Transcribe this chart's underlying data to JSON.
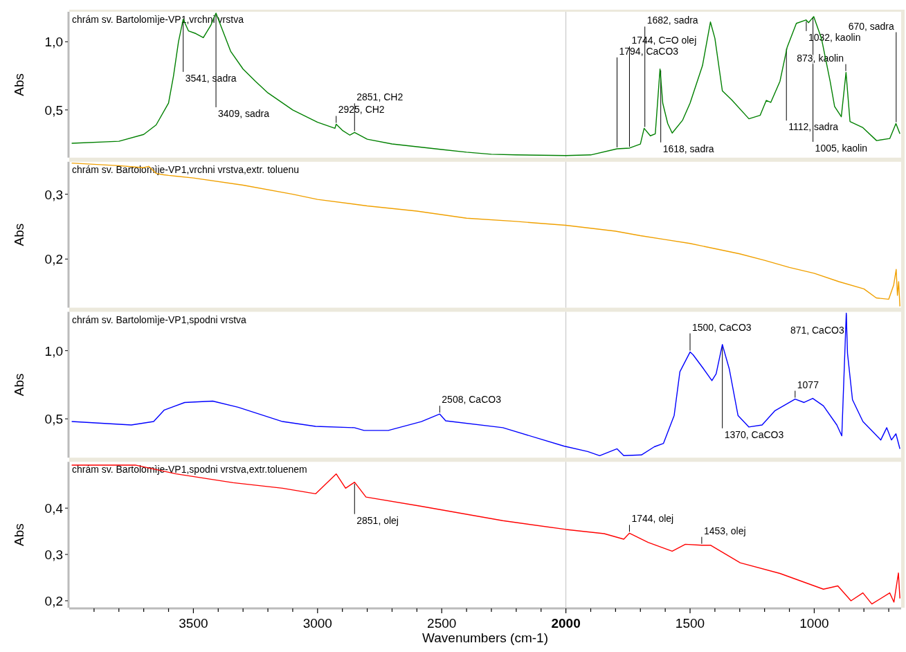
{
  "chart_data": [
    {
      "type": "line",
      "title": "chrám sv. Bartolomìje-VP1,vrchni vrstva",
      "ylabel": "Abs",
      "xlim": [
        4000,
        650
      ],
      "ylim": [
        0.15,
        1.22
      ],
      "yticks": [
        {
          "value": 0.5,
          "label": "0,5"
        },
        {
          "value": 1.0,
          "label": "1,0"
        }
      ],
      "tick_labels": "y",
      "color": "#008000",
      "x": [
        3990,
        3800,
        3700,
        3650,
        3600,
        3580,
        3560,
        3541,
        3520,
        3490,
        3460,
        3430,
        3409,
        3390,
        3350,
        3300,
        3250,
        3200,
        3100,
        3000,
        2930,
        2925,
        2900,
        2870,
        2851,
        2800,
        2700,
        2600,
        2500,
        2400,
        2300,
        2200,
        2000,
        1900,
        1794,
        1744,
        1700,
        1685,
        1660,
        1640,
        1621,
        1610,
        1590,
        1572,
        1530,
        1500,
        1450,
        1418,
        1400,
        1370,
        1333,
        1263,
        1218,
        1193,
        1175,
        1138,
        1109,
        1072,
        1033,
        1023,
        1002,
        971,
        936,
        918,
        891,
        872,
        856,
        804,
        749,
        696,
        671,
        655
      ],
      "values": [
        0.255,
        0.27,
        0.32,
        0.39,
        0.55,
        0.75,
        1.0,
        1.165,
        1.08,
        1.06,
        1.03,
        1.12,
        1.21,
        1.12,
        0.93,
        0.8,
        0.71,
        0.625,
        0.5,
        0.41,
        0.365,
        0.395,
        0.35,
        0.315,
        0.335,
        0.285,
        0.25,
        0.23,
        0.21,
        0.19,
        0.175,
        0.17,
        0.165,
        0.17,
        0.215,
        0.22,
        0.25,
        0.365,
        0.31,
        0.325,
        0.8,
        0.55,
        0.4,
        0.33,
        0.425,
        0.55,
        0.825,
        1.145,
        1.025,
        0.64,
        0.575,
        0.435,
        0.46,
        0.57,
        0.555,
        0.71,
        0.96,
        1.135,
        1.16,
        1.14,
        1.185,
        1.025,
        0.71,
        0.525,
        0.45,
        0.775,
        0.415,
        0.37,
        0.275,
        0.29,
        0.4,
        0.325
      ],
      "ref_lines": [
        {
          "axis": "x",
          "value": 2000,
          "color": "#c0c0c0"
        }
      ],
      "annotations": [
        {
          "text": "3541, sadra",
          "x": 3541,
          "y": 1.165
        },
        {
          "text": "3409, sadra",
          "x": 3409,
          "y": 1.21
        },
        {
          "text": "2925, CH2",
          "x": 2925,
          "y": 0.395
        },
        {
          "text": "2851, CH2",
          "x": 2851,
          "y": 0.335
        },
        {
          "text": "1794, CaCO3",
          "x": 1794,
          "y": 0.215
        },
        {
          "text": "1744, C=O olej",
          "x": 1744,
          "y": 0.22
        },
        {
          "text": "1682, sadra",
          "x": 1682,
          "y": 0.365
        },
        {
          "text": "1618, sadra",
          "x": 1618,
          "y": 0.8
        },
        {
          "text": "1112, sadra",
          "x": 1112,
          "y": 0.96
        },
        {
          "text": "1032, kaolin",
          "x": 1032,
          "y": 1.16
        },
        {
          "text": "1005, kaolin",
          "x": 1005,
          "y": 1.185
        },
        {
          "text": "873, kaolin",
          "x": 873,
          "y": 0.775
        },
        {
          "text": "670, sadra",
          "x": 670,
          "y": 0.4
        }
      ]
    },
    {
      "type": "line",
      "title": "chrám sv. Bartolomìje-VP1,vrchni vrstva,extr. toluenu",
      "ylabel": "Abs",
      "xlim": [
        4000,
        650
      ],
      "ylim": [
        0.125,
        0.35
      ],
      "yticks": [
        {
          "value": 0.2,
          "label": "0,2"
        },
        {
          "value": 0.3,
          "label": "0,3"
        }
      ],
      "tick_labels": "y",
      "color": "#f0a000",
      "x": [
        3990,
        3800,
        3700,
        3680,
        3650,
        3620,
        3600,
        3500,
        3300,
        3100,
        3000,
        2800,
        2600,
        2400,
        2200,
        2000,
        1800,
        1700,
        1600,
        1500,
        1400,
        1300,
        1200,
        1100,
        1000,
        900,
        800,
        750,
        700,
        680,
        670,
        665,
        660,
        655
      ],
      "values": [
        0.348,
        0.344,
        0.341,
        0.343,
        0.332,
        0.33,
        0.329,
        0.325,
        0.314,
        0.3,
        0.292,
        0.282,
        0.274,
        0.263,
        0.258,
        0.252,
        0.243,
        0.236,
        0.23,
        0.224,
        0.216,
        0.208,
        0.198,
        0.187,
        0.178,
        0.165,
        0.154,
        0.14,
        0.138,
        0.16,
        0.184,
        0.144,
        0.165,
        0.127
      ],
      "ref_lines": [
        {
          "axis": "x",
          "value": 2000,
          "color": "#c0c0c0"
        }
      ]
    },
    {
      "type": "line",
      "title": "chrám sv. Bartolomìje-VP1,spodni vrstva",
      "ylabel": "Abs",
      "xlim": [
        4000,
        650
      ],
      "ylim": [
        0.215,
        1.285
      ],
      "yticks": [
        {
          "value": 0.5,
          "label": "0,5"
        },
        {
          "value": 1.0,
          "label": "1,0"
        }
      ],
      "tick_labels": "y",
      "color": "#0000ff",
      "x": [
        3990,
        3750,
        3660,
        3617,
        3535,
        3422,
        3320,
        3141,
        3008,
        2852,
        2813,
        2715,
        2582,
        2508,
        2484,
        2254,
        2008,
        1912,
        1864,
        1794,
        1767,
        1696,
        1644,
        1607,
        1564,
        1541,
        1500,
        1488,
        1449,
        1412,
        1395,
        1370,
        1342,
        1307,
        1263,
        1210,
        1158,
        1077,
        1041,
        1006,
        963,
        909,
        889,
        871,
        866,
        846,
        804,
        732,
        708,
        689,
        671,
        655
      ],
      "values": [
        0.48,
        0.455,
        0.48,
        0.565,
        0.62,
        0.63,
        0.585,
        0.48,
        0.445,
        0.435,
        0.415,
        0.415,
        0.48,
        0.535,
        0.485,
        0.435,
        0.3,
        0.26,
        0.23,
        0.28,
        0.23,
        0.235,
        0.295,
        0.32,
        0.525,
        0.845,
        0.99,
        0.97,
        0.875,
        0.78,
        0.83,
        1.045,
        0.865,
        0.525,
        0.44,
        0.455,
        0.56,
        0.645,
        0.62,
        0.65,
        0.595,
        0.455,
        0.375,
        1.275,
        0.98,
        0.64,
        0.48,
        0.345,
        0.435,
        0.345,
        0.39,
        0.28
      ],
      "ref_lines": [
        {
          "axis": "x",
          "value": 2000,
          "color": "#c0c0c0"
        }
      ],
      "annotations": [
        {
          "text": "2508, CaCO3",
          "x": 2508,
          "y": 0.535
        },
        {
          "text": "1500, CaCO3",
          "x": 1500,
          "y": 0.99
        },
        {
          "text": "1370, CaCO3",
          "x": 1370,
          "y": 1.045
        },
        {
          "text": "1077",
          "x": 1077,
          "y": 0.645
        },
        {
          "text": "871, CaCO3",
          "x": 871,
          "y": 1.275
        }
      ]
    },
    {
      "type": "line",
      "title": "chrám sv. Bartolomìje-VP1,spodni vrstva,extr.toluenem",
      "ylabel": "Abs",
      "xlabel": "Wavenumbers (cm-1)",
      "xlim": [
        4000,
        650
      ],
      "ylim": [
        0.185,
        0.5
      ],
      "yticks": [
        {
          "value": 0.2,
          "label": "0,2"
        },
        {
          "value": 0.3,
          "label": "0,3"
        },
        {
          "value": 0.4,
          "label": "0,4"
        }
      ],
      "color": "#ff0000",
      "xticks": [
        {
          "value": 3900,
          "label": null
        },
        {
          "value": 3800,
          "label": null
        },
        {
          "value": 3700,
          "label": null
        },
        {
          "value": 3600,
          "label": null
        },
        3500,
        {
          "value": 3400,
          "label": null
        },
        {
          "value": 3300,
          "label": null
        },
        {
          "value": 3200,
          "label": null
        },
        {
          "value": 3100,
          "label": null
        },
        3000,
        {
          "value": 2900,
          "label": null
        },
        {
          "value": 2800,
          "label": null
        },
        {
          "value": 2700,
          "label": null
        },
        {
          "value": 2600,
          "label": null
        },
        2500,
        {
          "value": 2400,
          "label": null
        },
        {
          "value": 2300,
          "label": null
        },
        {
          "value": 2200,
          "label": null
        },
        {
          "value": 2100,
          "label": null
        },
        2000,
        {
          "value": 1900,
          "label": null
        },
        {
          "value": 1800,
          "label": null
        },
        {
          "value": 1700,
          "label": null
        },
        {
          "value": 1600,
          "label": null
        },
        1500,
        {
          "value": 1400,
          "label": null
        },
        {
          "value": 1300,
          "label": null
        },
        {
          "value": 1200,
          "label": null
        },
        {
          "value": 1100,
          "label": null
        },
        1000,
        {
          "value": 900,
          "label": null
        },
        {
          "value": 800,
          "label": null
        },
        {
          "value": 700,
          "label": null
        }
      ],
      "x": [
        3990,
        3734,
        3570,
        3340,
        3141,
        3008,
        2925,
        2887,
        2851,
        2805,
        2582,
        2254,
        2000,
        1846,
        1767,
        1744,
        1669,
        1572,
        1519,
        1453,
        1418,
        1298,
        1138,
        963,
        905,
        852,
        804,
        768,
        696,
        679,
        661,
        655
      ],
      "values": [
        0.493,
        0.493,
        0.474,
        0.455,
        0.443,
        0.431,
        0.474,
        0.443,
        0.456,
        0.424,
        0.404,
        0.373,
        0.354,
        0.345,
        0.333,
        0.346,
        0.326,
        0.307,
        0.322,
        0.32,
        0.32,
        0.282,
        0.259,
        0.225,
        0.232,
        0.2,
        0.217,
        0.193,
        0.217,
        0.197,
        0.26,
        0.205
      ],
      "ref_lines": [
        {
          "axis": "x",
          "value": 2000,
          "color": "#c0c0c0"
        }
      ],
      "annotations": [
        {
          "text": "2851, olej",
          "x": 2851,
          "y": 0.456
        },
        {
          "text": "1744, olej",
          "x": 1744,
          "y": 0.346
        },
        {
          "text": "1453, olej",
          "x": 1453,
          "y": 0.32
        }
      ]
    }
  ]
}
